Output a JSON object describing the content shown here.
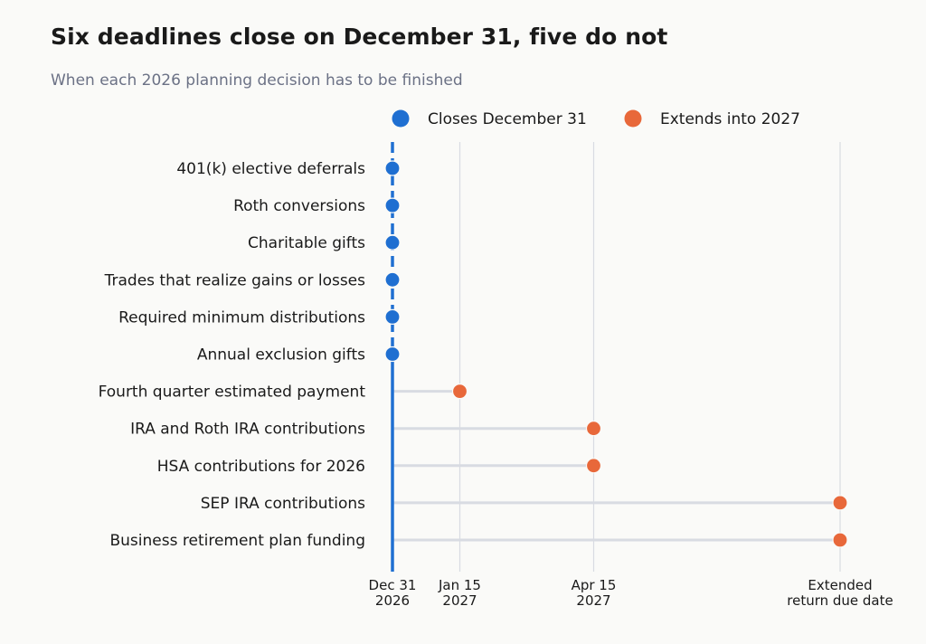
{
  "title": "Six deadlines close on December 31, five do not",
  "subtitle": "When each 2026 planning decision has to be finished",
  "colors": {
    "closes": "#1f6fd1",
    "extends": "#e8683a",
    "connector": "#d8dbe2",
    "grid": "#d8dbe2",
    "label": "#1a1a1a",
    "subtitle": "#6b7185"
  },
  "legend": {
    "placement": "top",
    "items": [
      {
        "label": "Closes December 31",
        "color": "#1f6fd1"
      },
      {
        "label": "Extends into 2027",
        "color": "#e8683a"
      }
    ]
  },
  "chart_data": {
    "type": "scatter",
    "title": "Six deadlines close on December 31, five do not",
    "subtitle": "When each 2026 planning decision has to be finished",
    "xlabel": "",
    "ylabel": "",
    "grid": true,
    "legend_placement": "top",
    "x_ticks": [
      {
        "date": "2026-12-31",
        "label": [
          "Dec 31",
          "2026"
        ]
      },
      {
        "date": "2027-01-15",
        "label": [
          "Jan 15",
          "2027"
        ]
      },
      {
        "date": "2027-04-15",
        "label": [
          "Apr 15",
          "2027"
        ]
      },
      {
        "date": "2027-10-15",
        "label": [
          "Extended",
          "return due date"
        ]
      }
    ],
    "series": [
      {
        "name": "Closes December 31",
        "color": "#1f6fd1",
        "points": [
          {
            "item": "401(k) elective deferrals",
            "date": "2026-12-31"
          },
          {
            "item": "Roth conversions",
            "date": "2026-12-31"
          },
          {
            "item": "Charitable gifts",
            "date": "2026-12-31"
          },
          {
            "item": "Trades that realize gains or losses",
            "date": "2026-12-31"
          },
          {
            "item": "Required minimum distributions",
            "date": "2026-12-31"
          },
          {
            "item": "Annual exclusion gifts",
            "date": "2026-12-31"
          }
        ]
      },
      {
        "name": "Extends into 2027",
        "color": "#e8683a",
        "points": [
          {
            "item": "Fourth quarter estimated payment",
            "date": "2027-01-15"
          },
          {
            "item": "IRA and Roth IRA contributions",
            "date": "2027-04-15"
          },
          {
            "item": "HSA contributions for 2026",
            "date": "2027-04-15"
          },
          {
            "item": "SEP IRA contributions",
            "date": "2027-10-15"
          },
          {
            "item": "Business retirement plan funding",
            "date": "2027-10-15"
          }
        ]
      }
    ]
  }
}
